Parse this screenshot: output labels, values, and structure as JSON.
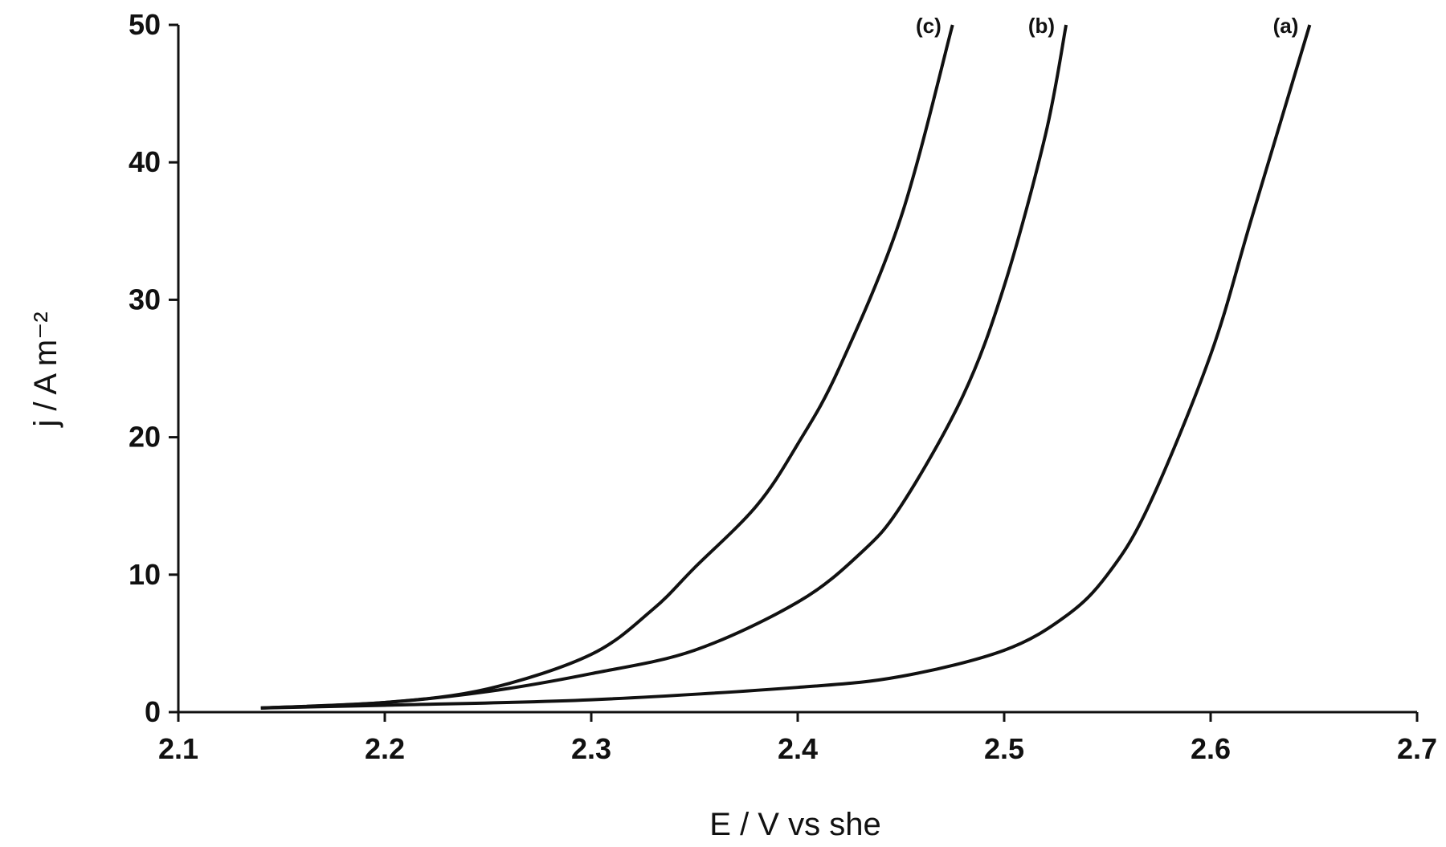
{
  "chart_data": {
    "type": "line",
    "x_label": "E / V vs she",
    "y_label": "j / A m⁻²",
    "xlim": [
      2.1,
      2.7
    ],
    "ylim": [
      0,
      50
    ],
    "xticks": [
      2.1,
      2.2,
      2.3,
      2.4,
      2.5,
      2.6,
      2.7
    ],
    "yticks": [
      0,
      10,
      20,
      30,
      40,
      50
    ],
    "series": [
      {
        "name": "(a)",
        "color": "#111111",
        "x": [
          2.14,
          2.2,
          2.3,
          2.4,
          2.45,
          2.5,
          2.53,
          2.55,
          2.57,
          2.6,
          2.62,
          2.648
        ],
        "values": [
          0.3,
          0.5,
          0.9,
          1.8,
          2.6,
          4.5,
          7,
          10,
          15,
          26,
          36,
          50
        ]
      },
      {
        "name": "(b)",
        "color": "#111111",
        "x": [
          2.14,
          2.2,
          2.25,
          2.3,
          2.35,
          2.4,
          2.43,
          2.45,
          2.48,
          2.5,
          2.52,
          2.53
        ],
        "values": [
          0.3,
          0.7,
          1.5,
          2.8,
          4.5,
          8,
          11.5,
          15,
          23,
          31,
          42,
          50
        ]
      },
      {
        "name": "(c)",
        "color": "#111111",
        "x": [
          2.14,
          2.2,
          2.25,
          2.3,
          2.33,
          2.35,
          2.38,
          2.4,
          2.42,
          2.45,
          2.475
        ],
        "values": [
          0.3,
          0.7,
          1.7,
          4.2,
          7.5,
          10.5,
          15,
          19.5,
          25,
          36,
          50
        ]
      }
    ]
  }
}
